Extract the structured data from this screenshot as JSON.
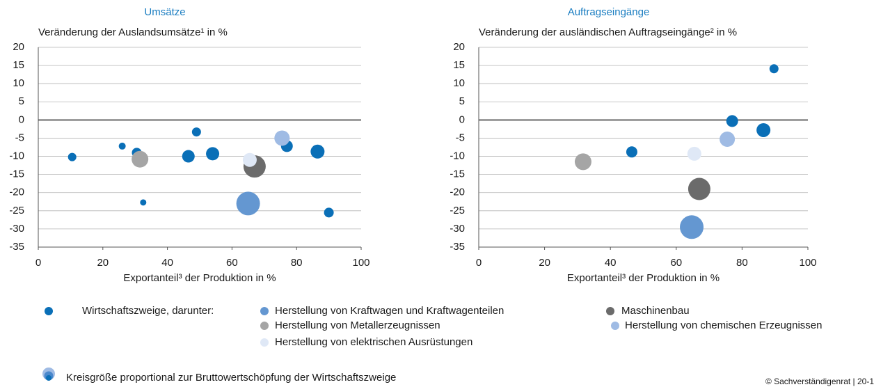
{
  "chart_data": [
    {
      "type": "scatter",
      "title": "Umsätze",
      "y_label": "Veränderung der Auslandsumsätze¹ in %",
      "x_label": "Exportanteil³ der Produktion in %",
      "xlim": [
        0,
        100
      ],
      "xticks": [
        0,
        20,
        40,
        60,
        80,
        100
      ],
      "ylim": [
        -35,
        20
      ],
      "yticks": [
        20,
        15,
        10,
        5,
        0,
        -5,
        -10,
        -15,
        -20,
        -25,
        -30,
        -35
      ],
      "grid": true,
      "series": [
        {
          "name": "Wirtschaftszweige, darunter:",
          "color": "#0a6fb7",
          "x": [
            10.5,
            26,
            30.5,
            32.5,
            46.5,
            49,
            54,
            77,
            86.5,
            90
          ],
          "values": [
            -10.2,
            -7.2,
            -9,
            -22.7,
            -10,
            -3.3,
            -9.3,
            -7.2,
            -8.7,
            -25.5
          ],
          "sizes": [
            6,
            5,
            7,
            4.5,
            9,
            6.5,
            9.5,
            8.5,
            10,
            7
          ]
        },
        {
          "name": "Herstellung von Kraftwagen und Kraftwagenteilen",
          "color": "#6497d1",
          "x": [
            65
          ],
          "values": [
            -23
          ],
          "sizes": [
            17
          ]
        },
        {
          "name": "Maschinenbau",
          "color": "#6b6b6b",
          "x": [
            67
          ],
          "values": [
            -12.8
          ],
          "sizes": [
            16
          ]
        },
        {
          "name": "Herstellung von Metallerzeugnissen",
          "color": "#a5a5a5",
          "x": [
            31.5
          ],
          "values": [
            -10.8
          ],
          "sizes": [
            12
          ]
        },
        {
          "name": "Herstellung von chemischen Erzeugnissen",
          "color": "#9fbbe4",
          "x": [
            75.5
          ],
          "values": [
            -5
          ],
          "sizes": [
            11
          ]
        },
        {
          "name": "Herstellung von elektrischen Ausrüstungen",
          "color": "#dfe8f6",
          "x": [
            65.5
          ],
          "values": [
            -11
          ],
          "sizes": [
            10
          ]
        }
      ]
    },
    {
      "type": "scatter",
      "title": "Auftragseingänge",
      "y_label": "Veränderung der ausländischen Auftragseingänge² in %",
      "x_label": "Exportanteil³ der Produktion in %",
      "xlim": [
        0,
        100
      ],
      "xticks": [
        0,
        20,
        40,
        60,
        80,
        100
      ],
      "ylim": [
        -35,
        20
      ],
      "yticks": [
        20,
        15,
        10,
        5,
        0,
        -5,
        -10,
        -15,
        -20,
        -25,
        -30,
        -35
      ],
      "grid": true,
      "series": [
        {
          "name": "Wirtschaftszweige, darunter:",
          "color": "#0a6fb7",
          "x": [
            46.5,
            77,
            86.5,
            89.7
          ],
          "values": [
            -8.8,
            -0.3,
            -2.8,
            14.1
          ],
          "sizes": [
            8,
            8.5,
            10,
            6.5
          ]
        },
        {
          "name": "Herstellung von Kraftwagen und Kraftwagenteilen",
          "color": "#6497d1",
          "x": [
            64.7
          ],
          "values": [
            -29.5
          ],
          "sizes": [
            17
          ]
        },
        {
          "name": "Maschinenbau",
          "color": "#6b6b6b",
          "x": [
            67
          ],
          "values": [
            -19
          ],
          "sizes": [
            16
          ]
        },
        {
          "name": "Herstellung von Metallerzeugnissen",
          "color": "#a5a5a5",
          "x": [
            31.7
          ],
          "values": [
            -11.5
          ],
          "sizes": [
            12
          ]
        },
        {
          "name": "Herstellung von chemischen Erzeugnissen",
          "color": "#9fbbe4",
          "x": [
            75.5
          ],
          "values": [
            -5.3
          ],
          "sizes": [
            11
          ]
        },
        {
          "name": "Herstellung von elektrischen Ausrüstungen",
          "color": "#dfe8f6",
          "x": [
            65.5
          ],
          "values": [
            -9.3
          ],
          "sizes": [
            10
          ]
        }
      ]
    }
  ],
  "size_note": "Kreisgröße proportional zur Bruttowertschöpfung der Wirtschaftszweige",
  "source": "© Sachverständigenrat | 20-1"
}
